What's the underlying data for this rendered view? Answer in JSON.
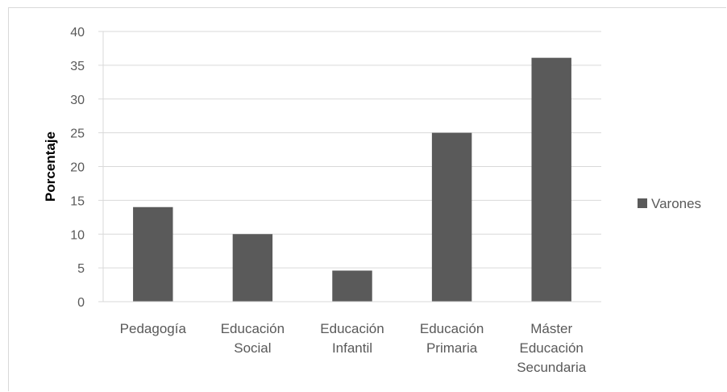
{
  "chart_data": {
    "type": "bar",
    "categories": [
      [
        "Pedagogía"
      ],
      [
        "Educación",
        "Social"
      ],
      [
        "Educación",
        "Infantil"
      ],
      [
        "Educación",
        "Primaria"
      ],
      [
        "Máster",
        "Educación",
        "Secundaria"
      ]
    ],
    "series": [
      {
        "name": "Varones",
        "values": [
          14,
          10,
          4.6,
          25,
          36.1
        ],
        "color": "#5a5a5a"
      }
    ],
    "ylabel": "Porcentaje",
    "ylim": [
      0,
      40
    ],
    "yticks": [
      0,
      5,
      10,
      15,
      20,
      25,
      30,
      35,
      40
    ],
    "grid": true,
    "gridColor": "#d9d9d9",
    "legend": {
      "position": "right"
    }
  }
}
